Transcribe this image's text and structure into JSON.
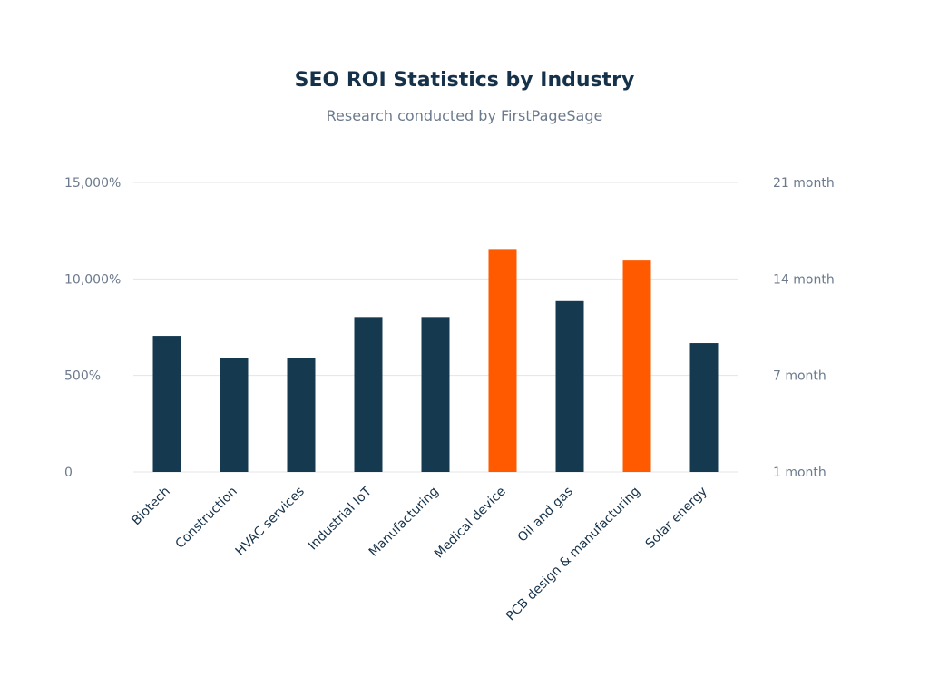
{
  "chart_data": {
    "type": "bar",
    "title": "SEO ROI Statistics by Industry",
    "subtitle": "Research conducted by FirstPageSage",
    "categories": [
      "Biotech",
      "Construction",
      "HVAC services",
      "Industrial IoT",
      "Manufacturing",
      "Medical device",
      "Oil and gas",
      "PCB design &  manufacturing",
      "Solar energy"
    ],
    "values": [
      10.4,
      8.9,
      8.9,
      11.7,
      11.7,
      16.4,
      12.8,
      15.6,
      9.9
    ],
    "value_axis": "right",
    "value_unit": "month",
    "ylim": [
      1,
      21
    ],
    "highlighted": [
      "Medical device",
      "PCB design &  manufacturing"
    ],
    "left_ticks": [
      "0",
      "500%",
      "10,000%",
      "15,000%"
    ],
    "right_ticks": [
      "1 month",
      "7 month",
      "14 month",
      "21 month"
    ],
    "grid": true,
    "colors": {
      "bar": "#15394f",
      "highlight": "#ff5a00",
      "grid": "#e3e6ea",
      "axis_text": "#6b7a8c",
      "title": "#15324a"
    }
  }
}
